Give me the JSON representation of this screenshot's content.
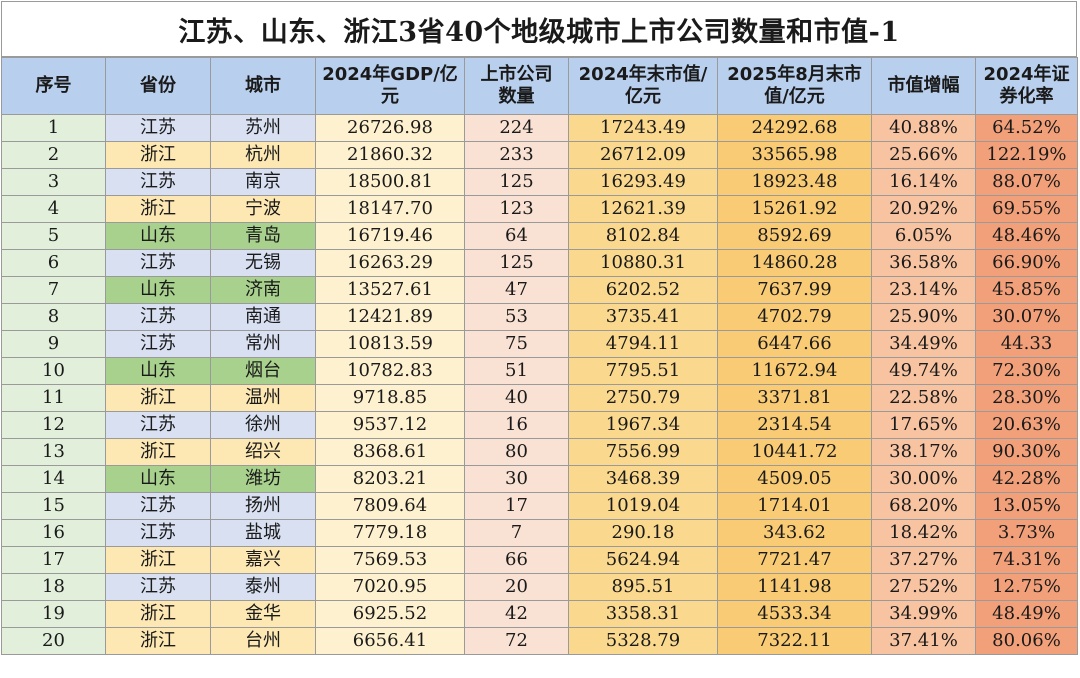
{
  "title": "江苏、山东、浙江3省40个地级城市上市公司数量和市值-1",
  "headers": {
    "idx": "序号",
    "province": "省份",
    "city": "城市",
    "gdp": "2024年GDP/亿元",
    "count": "上市公司数量",
    "mv2024": "2024年末市值/亿元",
    "mv2025": "2025年8月末市值/亿元",
    "growth": "市值增幅",
    "rate": "2024年证券化率"
  },
  "colors": {
    "header": "#b9cfee",
    "jiangsu": "#d9e0f1",
    "zhejiang": "#fde8b4",
    "shandong": "#a9d18e"
  },
  "rows": [
    {
      "idx": "1",
      "province": "江苏",
      "city": "苏州",
      "gdp": "26726.98",
      "count": "224",
      "mv2024": "17243.49",
      "mv2025": "24292.68",
      "growth": "40.88%",
      "rate": "64.52%"
    },
    {
      "idx": "2",
      "province": "浙江",
      "city": "杭州",
      "gdp": "21860.32",
      "count": "233",
      "mv2024": "26712.09",
      "mv2025": "33565.98",
      "growth": "25.66%",
      "rate": "122.19%"
    },
    {
      "idx": "3",
      "province": "江苏",
      "city": "南京",
      "gdp": "18500.81",
      "count": "125",
      "mv2024": "16293.49",
      "mv2025": "18923.48",
      "growth": "16.14%",
      "rate": "88.07%"
    },
    {
      "idx": "4",
      "province": "浙江",
      "city": "宁波",
      "gdp": "18147.70",
      "count": "123",
      "mv2024": "12621.39",
      "mv2025": "15261.92",
      "growth": "20.92%",
      "rate": "69.55%"
    },
    {
      "idx": "5",
      "province": "山东",
      "city": "青岛",
      "gdp": "16719.46",
      "count": "64",
      "mv2024": "8102.84",
      "mv2025": "8592.69",
      "growth": "6.05%",
      "rate": "48.46%"
    },
    {
      "idx": "6",
      "province": "江苏",
      "city": "无锡",
      "gdp": "16263.29",
      "count": "125",
      "mv2024": "10880.31",
      "mv2025": "14860.28",
      "growth": "36.58%",
      "rate": "66.90%"
    },
    {
      "idx": "7",
      "province": "山东",
      "city": "济南",
      "gdp": "13527.61",
      "count": "47",
      "mv2024": "6202.52",
      "mv2025": "7637.99",
      "growth": "23.14%",
      "rate": "45.85%"
    },
    {
      "idx": "8",
      "province": "江苏",
      "city": "南通",
      "gdp": "12421.89",
      "count": "53",
      "mv2024": "3735.41",
      "mv2025": "4702.79",
      "growth": "25.90%",
      "rate": "30.07%"
    },
    {
      "idx": "9",
      "province": "江苏",
      "city": "常州",
      "gdp": "10813.59",
      "count": "75",
      "mv2024": "4794.11",
      "mv2025": "6447.66",
      "growth": "34.49%",
      "rate": "44.33"
    },
    {
      "idx": "10",
      "province": "山东",
      "city": "烟台",
      "gdp": "10782.83",
      "count": "51",
      "mv2024": "7795.51",
      "mv2025": "11672.94",
      "growth": "49.74%",
      "rate": "72.30%"
    },
    {
      "idx": "11",
      "province": "浙江",
      "city": "温州",
      "gdp": "9718.85",
      "count": "40",
      "mv2024": "2750.79",
      "mv2025": "3371.81",
      "growth": "22.58%",
      "rate": "28.30%"
    },
    {
      "idx": "12",
      "province": "江苏",
      "city": "徐州",
      "gdp": "9537.12",
      "count": "16",
      "mv2024": "1967.34",
      "mv2025": "2314.54",
      "growth": "17.65%",
      "rate": "20.63%"
    },
    {
      "idx": "13",
      "province": "浙江",
      "city": "绍兴",
      "gdp": "8368.61",
      "count": "80",
      "mv2024": "7556.99",
      "mv2025": "10441.72",
      "growth": "38.17%",
      "rate": "90.30%"
    },
    {
      "idx": "14",
      "province": "山东",
      "city": "潍坊",
      "gdp": "8203.21",
      "count": "30",
      "mv2024": "3468.39",
      "mv2025": "4509.05",
      "growth": "30.00%",
      "rate": "42.28%"
    },
    {
      "idx": "15",
      "province": "江苏",
      "city": "扬州",
      "gdp": "7809.64",
      "count": "17",
      "mv2024": "1019.04",
      "mv2025": "1714.01",
      "growth": "68.20%",
      "rate": "13.05%"
    },
    {
      "idx": "16",
      "province": "江苏",
      "city": "盐城",
      "gdp": "7779.18",
      "count": "7",
      "mv2024": "290.18",
      "mv2025": "343.62",
      "growth": "18.42%",
      "rate": "3.73%"
    },
    {
      "idx": "17",
      "province": "浙江",
      "city": "嘉兴",
      "gdp": "7569.53",
      "count": "66",
      "mv2024": "5624.94",
      "mv2025": "7721.47",
      "growth": "37.27%",
      "rate": "74.31%"
    },
    {
      "idx": "18",
      "province": "江苏",
      "city": "泰州",
      "gdp": "7020.95",
      "count": "20",
      "mv2024": "895.51",
      "mv2025": "1141.98",
      "growth": "27.52%",
      "rate": "12.75%"
    },
    {
      "idx": "19",
      "province": "浙江",
      "city": "金华",
      "gdp": "6925.52",
      "count": "42",
      "mv2024": "3358.31",
      "mv2025": "4533.34",
      "growth": "34.99%",
      "rate": "48.49%"
    },
    {
      "idx": "20",
      "province": "浙江",
      "city": "台州",
      "gdp": "6656.41",
      "count": "72",
      "mv2024": "5328.79",
      "mv2025": "7322.11",
      "growth": "37.41%",
      "rate": "80.06%"
    }
  ]
}
